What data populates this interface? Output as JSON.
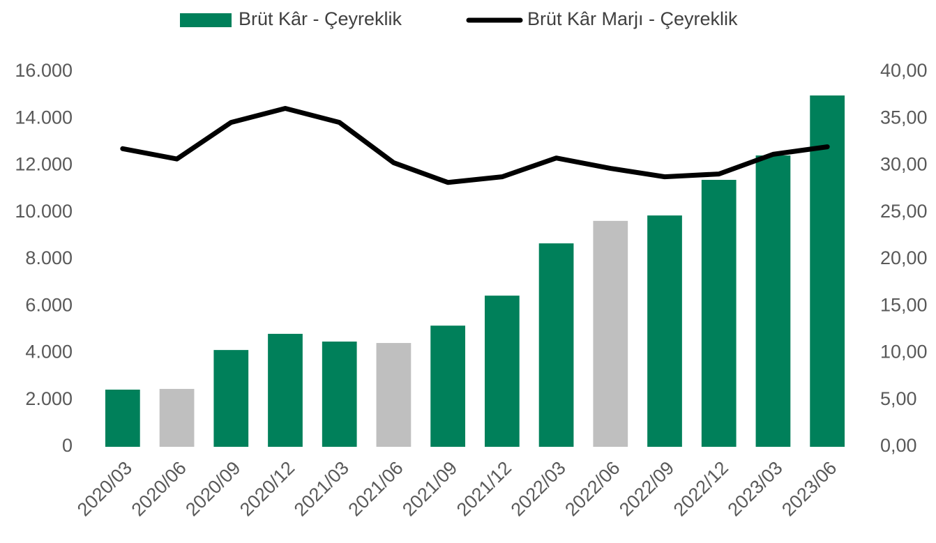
{
  "chart_data": {
    "type": "bar_line",
    "categories": [
      "2020/03",
      "2020/06",
      "2020/09",
      "2020/12",
      "2021/03",
      "2021/06",
      "2021/09",
      "2021/12",
      "2022/03",
      "2022/06",
      "2022/09",
      "2022/12",
      "2023/03",
      "2023/06"
    ],
    "series": [
      {
        "name": "Brüt Kâr - Çeyreklik",
        "type": "bar",
        "color": "#00805a",
        "colors": [
          "#00805a",
          "#bfbfbf",
          "#00805a",
          "#00805a",
          "#00805a",
          "#bfbfbf",
          "#00805a",
          "#00805a",
          "#00805a",
          "#bfbfbf",
          "#00805a",
          "#00805a",
          "#00805a",
          "#00805a"
        ],
        "values": [
          2440,
          2470,
          4130,
          4820,
          4490,
          4430,
          5170,
          6450,
          8680,
          9640,
          9870,
          11390,
          12430,
          14990
        ]
      },
      {
        "name": "Brüt Kâr Marjı - Çeyreklik",
        "type": "line",
        "axis": "y2",
        "color": "#000000",
        "values": [
          31.8,
          30.7,
          34.6,
          36.1,
          34.6,
          30.3,
          28.2,
          28.8,
          30.8,
          29.7,
          28.8,
          29.1,
          31.2,
          32.0
        ]
      }
    ],
    "ylim": [
      0,
      16000
    ],
    "yticks": [
      0,
      {
        "value": 2000,
        "label": "2.000"
      },
      {
        "value": 4000,
        "label": "4.000"
      },
      {
        "value": 6000,
        "label": "6.000"
      },
      {
        "value": 8000,
        "label": "8.000"
      },
      {
        "value": 10000,
        "label": "10.000"
      },
      {
        "value": 12000,
        "label": "12.000"
      },
      {
        "value": 14000,
        "label": "14.000"
      },
      {
        "value": 16000,
        "label": "16.000"
      }
    ],
    "y2lim": [
      0,
      40
    ],
    "y2ticks": [
      {
        "value": 0,
        "label": "0,00"
      },
      {
        "value": 5,
        "label": "5,00"
      },
      {
        "value": 10,
        "label": "10,00"
      },
      {
        "value": 15,
        "label": "15,00"
      },
      {
        "value": 20,
        "label": "20,00"
      },
      {
        "value": 25,
        "label": "25,00"
      },
      {
        "value": 30,
        "label": "30,00"
      },
      {
        "value": 35,
        "label": "35,00"
      },
      {
        "value": 40,
        "label": "40,00"
      }
    ],
    "legend": "top"
  }
}
